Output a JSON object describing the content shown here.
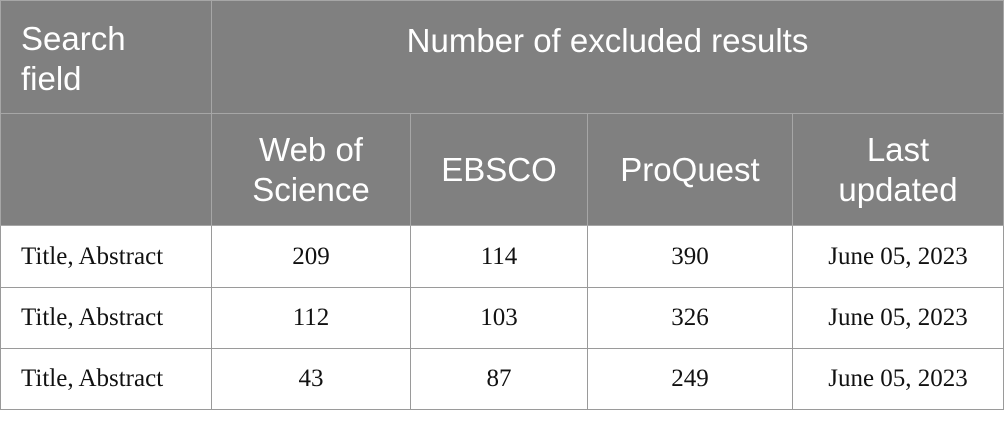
{
  "header": {
    "search_field": "Search field",
    "group": "Number of excluded results",
    "columns": [
      "Web of Science",
      "EBSCO",
      "ProQuest",
      "Last updated"
    ]
  },
  "rows": [
    [
      "Title, Abstract",
      209,
      114,
      390,
      "June 05, 2023"
    ],
    [
      "Title, Abstract",
      112,
      103,
      326,
      "June 05, 2023"
    ],
    [
      "Title, Abstract",
      43,
      87,
      249,
      "June 05, 2023"
    ]
  ]
}
